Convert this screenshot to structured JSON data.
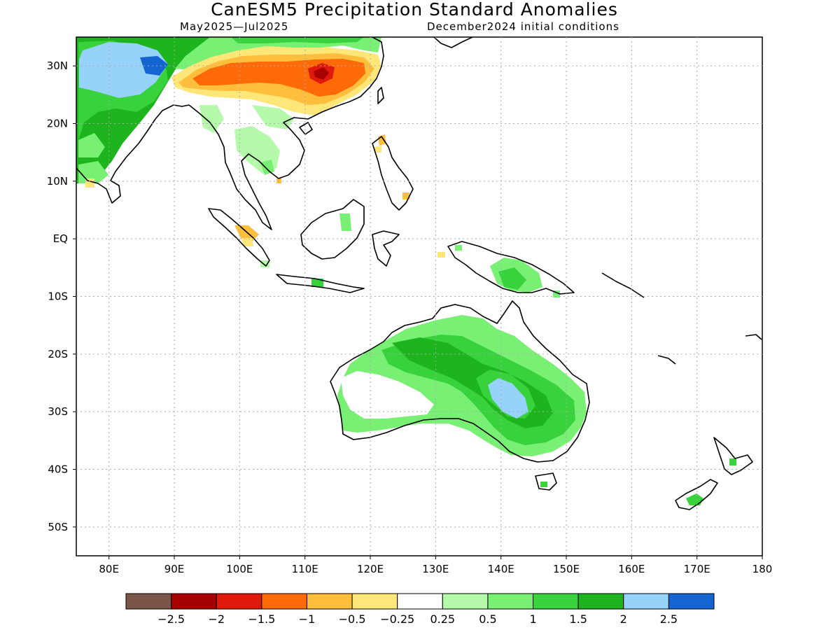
{
  "title": "CanESM5 Precipitation Standard Anomalies",
  "subtitle_left": "May2025—Jul2025",
  "subtitle_right": "December2024 initial conditions",
  "map": {
    "lon_range": [
      75,
      180
    ],
    "lat_range": [
      -55,
      35
    ],
    "lon_ticks": [
      {
        "value": 80,
        "label": "80E"
      },
      {
        "value": 90,
        "label": "90E"
      },
      {
        "value": 100,
        "label": "100E"
      },
      {
        "value": 110,
        "label": "110E"
      },
      {
        "value": 120,
        "label": "120E"
      },
      {
        "value": 130,
        "label": "130E"
      },
      {
        "value": 140,
        "label": "140E"
      },
      {
        "value": 150,
        "label": "150E"
      },
      {
        "value": 160,
        "label": "160E"
      },
      {
        "value": 170,
        "label": "170E"
      },
      {
        "value": 180,
        "label": "180"
      }
    ],
    "lat_ticks": [
      {
        "value": 30,
        "label": "30N"
      },
      {
        "value": 20,
        "label": "20N"
      },
      {
        "value": 10,
        "label": "10N"
      },
      {
        "value": 0,
        "label": "EQ"
      },
      {
        "value": -10,
        "label": "10S"
      },
      {
        "value": -20,
        "label": "20S"
      },
      {
        "value": -30,
        "label": "30S"
      },
      {
        "value": -40,
        "label": "40S"
      },
      {
        "value": -50,
        "label": "50S"
      }
    ],
    "grid": true
  },
  "colorbar": {
    "colors": [
      "#7a5548",
      "#a80000",
      "#e01a0a",
      "#ff6a08",
      "#ffbe3c",
      "#ffe678",
      "#ffffff",
      "#b4faaa",
      "#78f073",
      "#37d23c",
      "#1eb41e",
      "#96d2fa",
      "#1464d2"
    ],
    "labels": [
      "−2.5",
      "−2",
      "−1.5",
      "−1",
      "−0.5",
      "−0.25",
      "0.25",
      "0.5",
      "1",
      "1.5",
      "2",
      "2.5"
    ]
  }
}
